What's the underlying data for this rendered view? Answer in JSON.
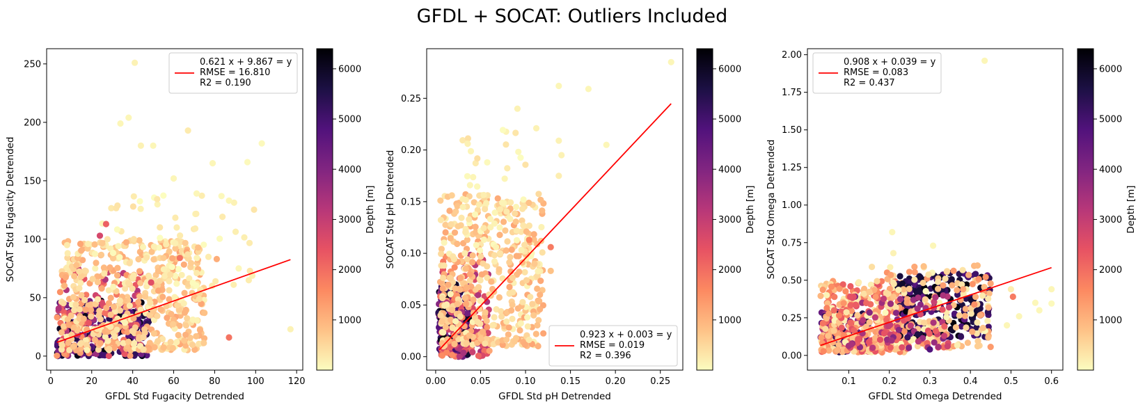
{
  "title": "GFDL + SOCAT: Outliers Included",
  "colorbar": {
    "label": "Depth [m]",
    "ticks": [
      1000,
      2000,
      3000,
      4000,
      5000,
      6000
    ],
    "range": [
      0,
      6400
    ],
    "colormap": "magma_r"
  },
  "chart_data": [
    {
      "type": "scatter",
      "xlabel": "GFDL Std Fugacity Detrended",
      "ylabel": "SOCAT Std Fugacity Detrended",
      "xlim": [
        -2,
        123
      ],
      "ylim": [
        -12,
        263
      ],
      "xticks": [
        0,
        20,
        40,
        60,
        80,
        100,
        120
      ],
      "yticks": [
        0,
        50,
        100,
        150,
        200,
        250
      ],
      "xtick_labels": [
        "0",
        "20",
        "40",
        "60",
        "80",
        "100",
        "120"
      ],
      "ytick_labels": [
        "0",
        "50",
        "100",
        "150",
        "200",
        "250"
      ],
      "fit": {
        "slope": 0.621,
        "intercept": 9.867,
        "x_range": [
          3,
          117
        ]
      },
      "legend": {
        "position": "top-right",
        "lines": [
          "0.621 x + 9.867 = y",
          "RMSE = 16.810",
          "R2 = 0.190"
        ]
      },
      "cloud": [
        {
          "xr": [
            3,
            48
          ],
          "yr": [
            0,
            48
          ],
          "depth": [
            3500,
            6300
          ],
          "n": 260
        },
        {
          "xr": [
            3,
            45
          ],
          "yr": [
            0,
            75
          ],
          "depth": [
            1200,
            3500
          ],
          "n": 130
        },
        {
          "xr": [
            5,
            75
          ],
          "yr": [
            5,
            100
          ],
          "depth": [
            100,
            1200
          ],
          "n": 520
        },
        {
          "xr": [
            20,
            100
          ],
          "yr": [
            60,
            140
          ],
          "depth": [
            0,
            400
          ],
          "n": 70
        }
      ],
      "points": [
        [
          41,
          251,
          150
        ],
        [
          38,
          204,
          100
        ],
        [
          34,
          199,
          100
        ],
        [
          44,
          180,
          150
        ],
        [
          50,
          180,
          100
        ],
        [
          67,
          193,
          250
        ],
        [
          103,
          182,
          50
        ],
        [
          96,
          166,
          50
        ],
        [
          79,
          165,
          100
        ],
        [
          60,
          152,
          100
        ],
        [
          87,
          133,
          100
        ],
        [
          117,
          23,
          150
        ],
        [
          87,
          16,
          1900
        ],
        [
          81,
          83,
          1100
        ],
        [
          63,
          84,
          1900
        ],
        [
          27,
          113,
          2200
        ],
        [
          24,
          103,
          2700
        ],
        [
          49,
          63,
          2500
        ],
        [
          75,
          37,
          800
        ],
        [
          69,
          54,
          700
        ]
      ]
    },
    {
      "type": "scatter",
      "xlabel": "GFDL Std pH Detrended",
      "ylabel": "SOCAT Std pH Detrended",
      "xlim": [
        -0.01,
        0.275
      ],
      "ylim": [
        -0.013,
        0.298
      ],
      "xticks": [
        0,
        0.05,
        0.1,
        0.15,
        0.2,
        0.25
      ],
      "yticks": [
        0,
        0.05,
        0.1,
        0.15,
        0.2,
        0.25
      ],
      "xtick_labels": [
        "0.00",
        "0.05",
        "0.10",
        "0.15",
        "0.20",
        "0.25"
      ],
      "ytick_labels": [
        "0.00",
        "0.05",
        "0.10",
        "0.15",
        "0.20",
        "0.25"
      ],
      "fit": {
        "slope": 0.923,
        "intercept": 0.003,
        "x_range": [
          0.004,
          0.262
        ]
      },
      "legend": {
        "position": "bottom-right",
        "lines": [
          "0.923 x + 0.003 = y",
          "RMSE = 0.019",
          "R2 = 0.396"
        ]
      },
      "cloud": [
        {
          "xr": [
            0.003,
            0.04
          ],
          "yr": [
            0,
            0.07
          ],
          "depth": [
            3500,
            6300
          ],
          "n": 230
        },
        {
          "xr": [
            0.005,
            0.06
          ],
          "yr": [
            0,
            0.1
          ],
          "depth": [
            1200,
            3500
          ],
          "n": 140
        },
        {
          "xr": [
            0.005,
            0.12
          ],
          "yr": [
            0.01,
            0.16
          ],
          "depth": [
            100,
            1200
          ],
          "n": 420
        },
        {
          "xr": [
            0.03,
            0.1
          ],
          "yr": [
            0.1,
            0.22
          ],
          "depth": [
            0,
            400
          ],
          "n": 60
        }
      ],
      "points": [
        [
          0.262,
          0.285,
          100
        ],
        [
          0.137,
          0.262,
          100
        ],
        [
          0.17,
          0.259,
          100
        ],
        [
          0.091,
          0.24,
          150
        ],
        [
          0.19,
          0.205,
          100
        ],
        [
          0.112,
          0.221,
          150
        ],
        [
          0.137,
          0.209,
          150
        ],
        [
          0.14,
          0.195,
          150
        ],
        [
          0.137,
          0.175,
          200
        ],
        [
          0.128,
          0.106,
          1800
        ],
        [
          0.128,
          0.083,
          800
        ],
        [
          0.116,
          0.06,
          1000
        ],
        [
          0.109,
          0.04,
          700
        ],
        [
          0.11,
          0.09,
          700
        ],
        [
          0.101,
          0.121,
          900
        ],
        [
          0.104,
          0.113,
          1600
        ]
      ]
    },
    {
      "type": "scatter",
      "xlabel": "GFDL Std Omega Detrended",
      "ylabel": "SOCAT Std Omega Detrended",
      "xlim": [
        -0.002,
        0.628
      ],
      "ylim": [
        -0.098,
        2.04
      ],
      "xticks": [
        0.1,
        0.2,
        0.3,
        0.4,
        0.5,
        0.6
      ],
      "yticks": [
        0,
        0.25,
        0.5,
        0.75,
        1,
        1.25,
        1.5,
        1.75,
        2
      ],
      "xtick_labels": [
        "0.1",
        "0.2",
        "0.3",
        "0.4",
        "0.5",
        "0.6"
      ],
      "ytick_labels": [
        "0.00",
        "0.25",
        "0.50",
        "0.75",
        "1.00",
        "1.25",
        "1.50",
        "1.75",
        "2.00"
      ],
      "fit": {
        "slope": 0.908,
        "intercept": 0.039,
        "x_range": [
          0.03,
          0.6
        ]
      },
      "legend": {
        "position": "top-left",
        "lines": [
          "0.908 x + 0.039 = y",
          "RMSE = 0.083",
          "R2 = 0.437"
        ]
      },
      "cloud": [
        {
          "xr": [
            0.03,
            0.15
          ],
          "yr": [
            0.02,
            0.3
          ],
          "depth": [
            3000,
            5800
          ],
          "n": 120
        },
        {
          "xr": [
            0.03,
            0.25
          ],
          "yr": [
            0.02,
            0.5
          ],
          "depth": [
            100,
            2500
          ],
          "n": 380
        },
        {
          "xr": [
            0.22,
            0.45
          ],
          "yr": [
            0.12,
            0.55
          ],
          "depth": [
            4500,
            6300
          ],
          "n": 220
        },
        {
          "xr": [
            0.15,
            0.45
          ],
          "yr": [
            0.05,
            0.6
          ],
          "depth": [
            0,
            1500
          ],
          "n": 180
        },
        {
          "xr": [
            0.1,
            0.35
          ],
          "yr": [
            0.05,
            0.4
          ],
          "depth": [
            2000,
            4000
          ],
          "n": 90
        }
      ],
      "points": [
        [
          0.435,
          1.96,
          100
        ],
        [
          0.207,
          0.82,
          100
        ],
        [
          0.308,
          0.73,
          100
        ],
        [
          0.21,
          0.68,
          150
        ],
        [
          0.6,
          0.345,
          50
        ],
        [
          0.6,
          0.44,
          100
        ],
        [
          0.56,
          0.35,
          80
        ],
        [
          0.52,
          0.26,
          100
        ],
        [
          0.57,
          0.3,
          80
        ],
        [
          0.505,
          0.39,
          1800
        ],
        [
          0.49,
          0.2,
          100
        ],
        [
          0.5,
          0.44,
          200
        ],
        [
          0.3,
          0.04,
          4800
        ],
        [
          0.27,
          0.14,
          5600
        ],
        [
          0.245,
          0.12,
          5200
        ]
      ]
    }
  ]
}
